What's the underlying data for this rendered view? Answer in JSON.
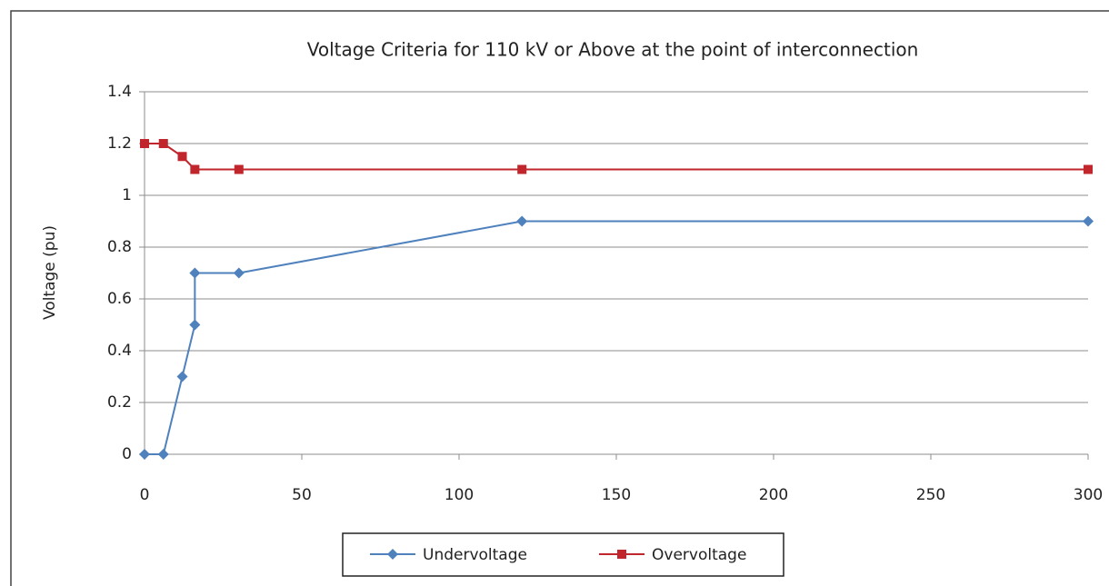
{
  "chart_data": {
    "type": "line",
    "title": "Voltage Criteria for 110 kV or Above at the point of interconnection",
    "ylabel": "Voltage (pu)",
    "series": [
      {
        "name": "Undervoltage",
        "color": "#4f81bd",
        "marker": "diamond",
        "x": [
          0,
          6,
          12,
          16,
          16,
          30,
          120,
          300
        ],
        "values": [
          0,
          0,
          0.3,
          0.5,
          0.7,
          0.7,
          0.9,
          0.9
        ]
      },
      {
        "name": "Overvoltage",
        "color": "#c0262b",
        "marker": "square",
        "x": [
          0,
          6,
          12,
          16,
          30,
          120,
          300
        ],
        "values": [
          1.2,
          1.2,
          1.15,
          1.1,
          1.1,
          1.1,
          1.1
        ]
      }
    ],
    "xlim": [
      0,
      300
    ],
    "xticks": [
      0,
      50,
      100,
      150,
      200,
      250,
      300
    ],
    "ylim": [
      0,
      1.4
    ],
    "yticks": [
      0,
      0.2,
      0.4,
      0.6,
      0.8,
      1,
      1.2,
      1.4
    ],
    "grid": true,
    "legend": "bottom"
  }
}
